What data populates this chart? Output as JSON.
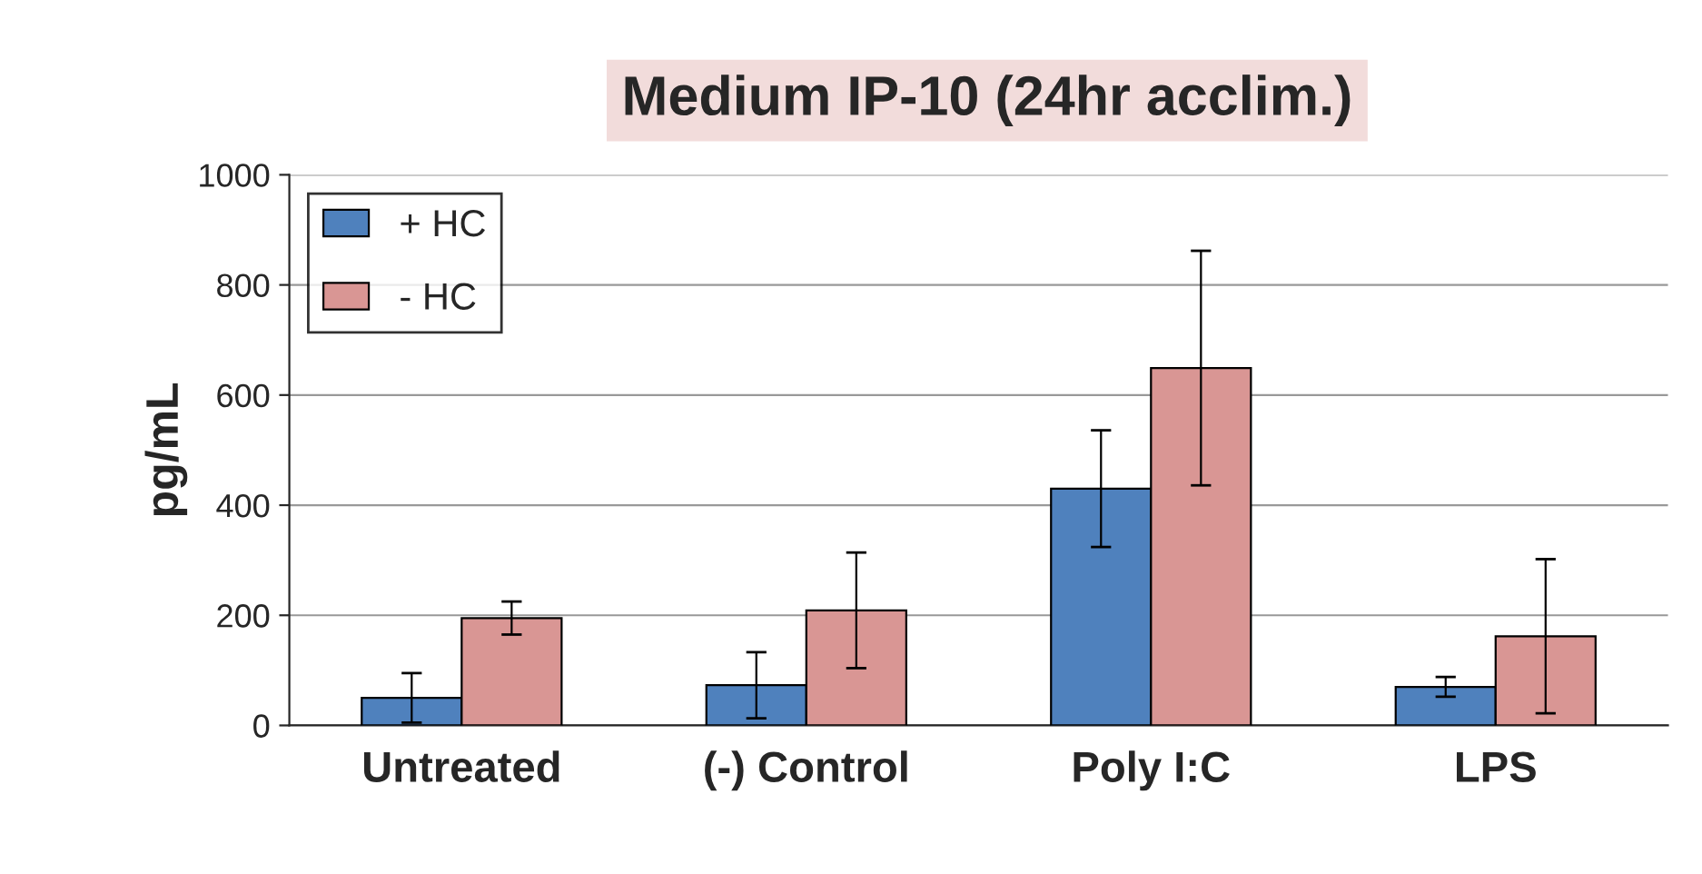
{
  "chart_data": {
    "type": "bar",
    "title": "Medium IP-10 (24hr acclim.)",
    "ylabel": "pg/mL",
    "categories": [
      "Untreated",
      "(-) Control",
      "Poly I:C",
      "LPS"
    ],
    "series": [
      {
        "name": "+ HC",
        "color": "#4f81bd",
        "values": [
          50,
          73,
          430,
          70
        ],
        "errors": [
          45,
          60,
          106,
          18
        ]
      },
      {
        "name": "- HC",
        "color": "#d99694",
        "values": [
          195,
          209,
          649,
          162
        ],
        "errors": [
          30,
          105,
          213,
          140
        ]
      }
    ],
    "ylim": [
      0,
      1000
    ],
    "yticks": [
      0,
      200,
      400,
      600,
      800,
      1000
    ],
    "grid": "y",
    "legend": "top left"
  }
}
